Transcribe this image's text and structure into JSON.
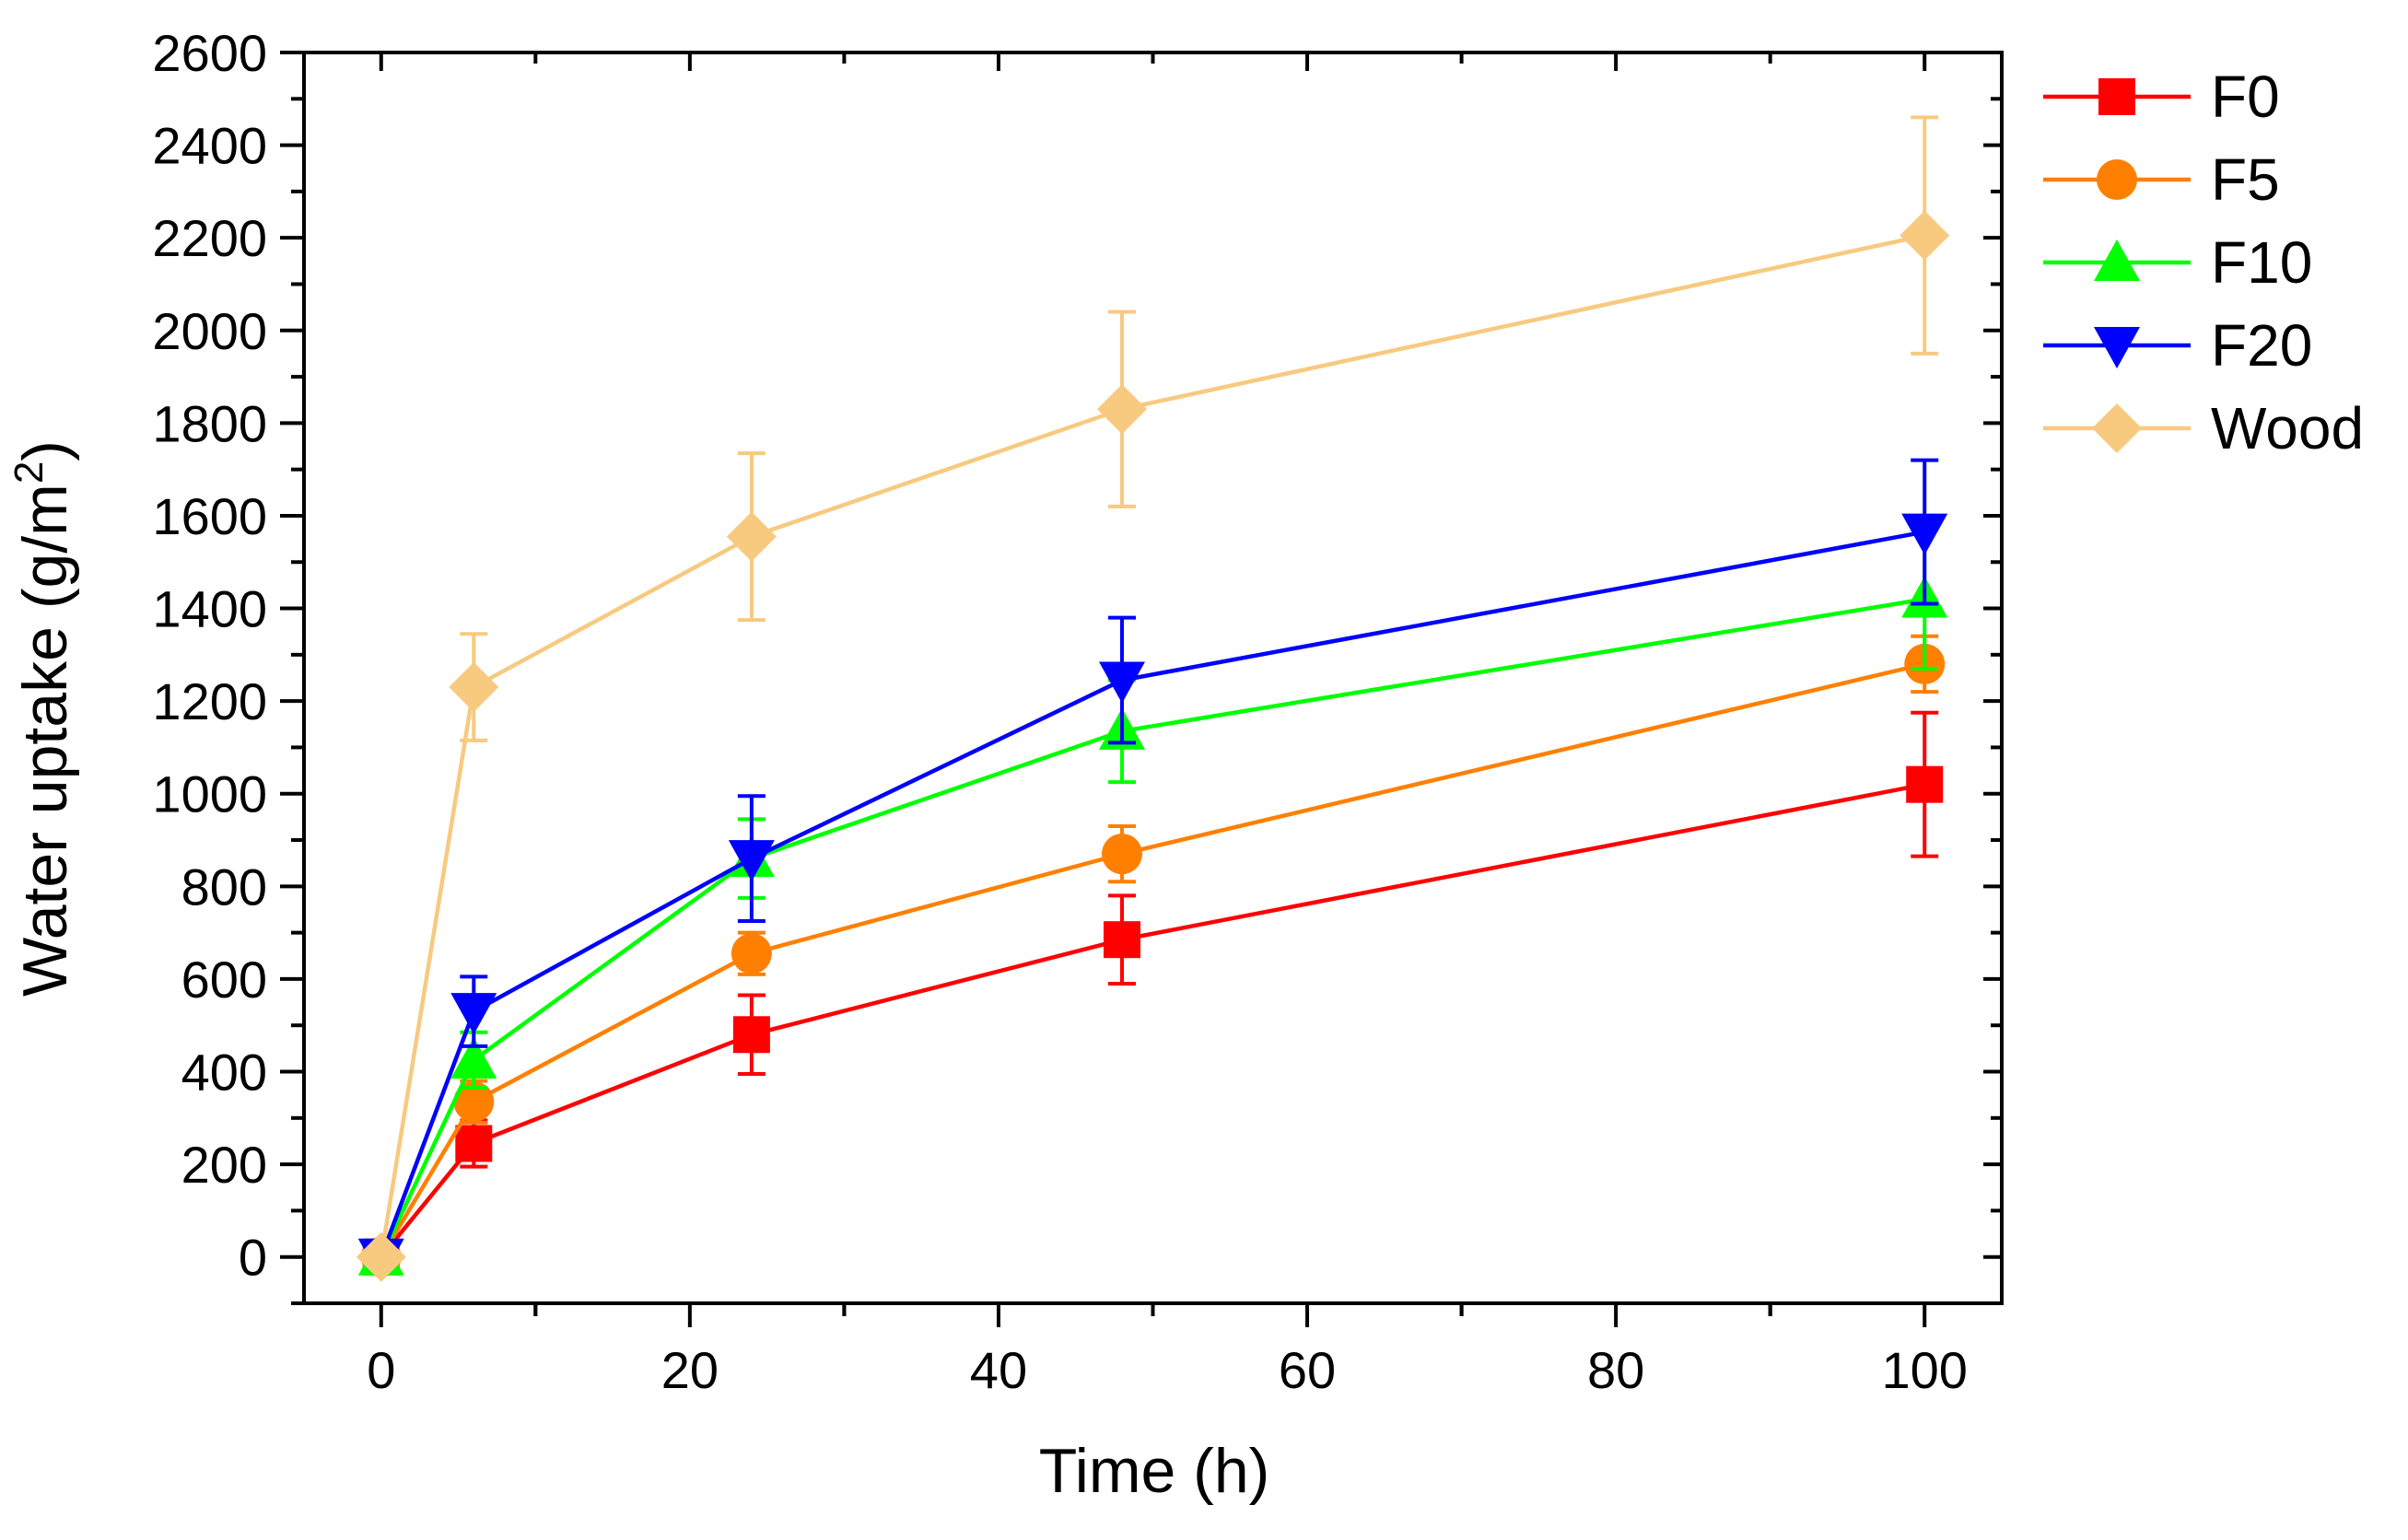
{
  "chart_data": {
    "type": "line",
    "title": "",
    "xlabel": "Time (h)",
    "ylabel_main": "Water uptake (g/m",
    "ylabel_sup": "2",
    "ylabel_end": ")",
    "xlim": [
      -5,
      105
    ],
    "ylim": [
      -100,
      2600
    ],
    "xticks": [
      0,
      20,
      40,
      60,
      80,
      100
    ],
    "yticks": [
      0,
      200,
      400,
      600,
      800,
      1000,
      1200,
      1400,
      1600,
      1800,
      2000,
      2200,
      2400,
      2600
    ],
    "x": [
      0,
      6,
      24,
      48,
      100
    ],
    "legend_position": "right",
    "series": [
      {
        "name": "F0",
        "color": "#ff0000",
        "marker": "square",
        "values": [
          0,
          245,
          480,
          685,
          1020
        ],
        "errors": [
          10,
          50,
          85,
          95,
          155
        ]
      },
      {
        "name": "F5",
        "color": "#ff8000",
        "marker": "circle",
        "values": [
          0,
          335,
          655,
          870,
          1280
        ],
        "errors": [
          10,
          45,
          45,
          60,
          60
        ]
      },
      {
        "name": "F10",
        "color": "#00ff00",
        "marker": "triangle-up",
        "values": [
          0,
          425,
          860,
          1135,
          1420
        ],
        "errors": [
          10,
          60,
          85,
          110,
          150
        ]
      },
      {
        "name": "F20",
        "color": "#0000ff",
        "marker": "triangle-down",
        "values": [
          0,
          530,
          860,
          1245,
          1565
        ],
        "errors": [
          10,
          75,
          135,
          135,
          155
        ]
      },
      {
        "name": "Wood",
        "color": "#f7ca80",
        "marker": "diamond",
        "values": [
          0,
          1230,
          1555,
          1830,
          2205
        ],
        "errors": [
          10,
          115,
          180,
          210,
          255
        ]
      }
    ]
  }
}
